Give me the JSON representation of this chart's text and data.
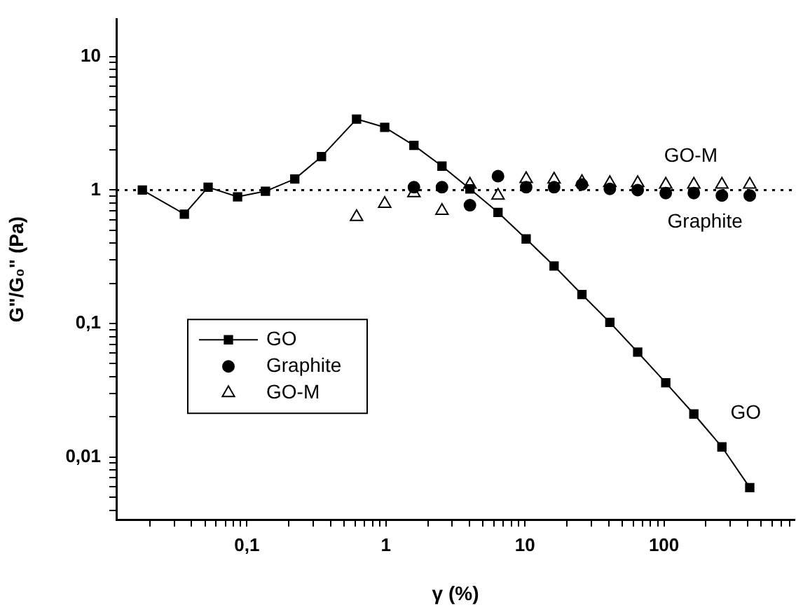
{
  "chart_data": {
    "type": "line",
    "xlabel": "γ (%)",
    "ylabel": "G\"/G₀\" (Pa)",
    "log": "xy",
    "grid": false,
    "legend": "left",
    "xlim": [
      0.0115,
      870
    ],
    "ylim": [
      0.0034,
      19
    ],
    "xticks": [
      {
        "value": 0.02,
        "label": null
      },
      {
        "value": 0.03,
        "label": null
      },
      {
        "value": 0.04,
        "label": null
      },
      {
        "value": 0.05,
        "label": null
      },
      {
        "value": 0.06,
        "label": null
      },
      {
        "value": 0.07,
        "label": null
      },
      {
        "value": 0.08,
        "label": null
      },
      {
        "value": 0.09,
        "label": null
      },
      {
        "value": 0.1,
        "label": "0,1"
      },
      {
        "value": 0.2,
        "label": null
      },
      {
        "value": 0.3,
        "label": null
      },
      {
        "value": 0.4,
        "label": null
      },
      {
        "value": 0.5,
        "label": null
      },
      {
        "value": 0.6,
        "label": null
      },
      {
        "value": 0.7,
        "label": null
      },
      {
        "value": 0.8,
        "label": null
      },
      {
        "value": 0.9,
        "label": null
      },
      {
        "value": 1,
        "label": "1"
      },
      {
        "value": 2,
        "label": null
      },
      {
        "value": 3,
        "label": null
      },
      {
        "value": 4,
        "label": null
      },
      {
        "value": 5,
        "label": null
      },
      {
        "value": 6,
        "label": null
      },
      {
        "value": 7,
        "label": null
      },
      {
        "value": 8,
        "label": null
      },
      {
        "value": 9,
        "label": null
      },
      {
        "value": 10,
        "label": "10"
      },
      {
        "value": 20,
        "label": null
      },
      {
        "value": 30,
        "label": null
      },
      {
        "value": 40,
        "label": null
      },
      {
        "value": 50,
        "label": null
      },
      {
        "value": 60,
        "label": null
      },
      {
        "value": 70,
        "label": null
      },
      {
        "value": 80,
        "label": null
      },
      {
        "value": 90,
        "label": null
      },
      {
        "value": 100,
        "label": "100"
      },
      {
        "value": 200,
        "label": null
      },
      {
        "value": 300,
        "label": null
      },
      {
        "value": 400,
        "label": null
      },
      {
        "value": 500,
        "label": null
      },
      {
        "value": 600,
        "label": null
      },
      {
        "value": 700,
        "label": null
      },
      {
        "value": 800,
        "label": null
      }
    ],
    "yticks": [
      {
        "value": 0.004,
        "label": null
      },
      {
        "value": 0.005,
        "label": null
      },
      {
        "value": 0.006,
        "label": null
      },
      {
        "value": 0.007,
        "label": null
      },
      {
        "value": 0.008,
        "label": null
      },
      {
        "value": 0.009,
        "label": null
      },
      {
        "value": 0.01,
        "label": "0,01"
      },
      {
        "value": 0.02,
        "label": null
      },
      {
        "value": 0.03,
        "label": null
      },
      {
        "value": 0.04,
        "label": null
      },
      {
        "value": 0.05,
        "label": null
      },
      {
        "value": 0.06,
        "label": null
      },
      {
        "value": 0.07,
        "label": null
      },
      {
        "value": 0.08,
        "label": null
      },
      {
        "value": 0.09,
        "label": null
      },
      {
        "value": 0.1,
        "label": "0,1"
      },
      {
        "value": 0.2,
        "label": null
      },
      {
        "value": 0.3,
        "label": null
      },
      {
        "value": 0.4,
        "label": null
      },
      {
        "value": 0.5,
        "label": null
      },
      {
        "value": 0.6,
        "label": null
      },
      {
        "value": 0.7,
        "label": null
      },
      {
        "value": 0.8,
        "label": null
      },
      {
        "value": 0.9,
        "label": null
      },
      {
        "value": 1,
        "label": "1"
      },
      {
        "value": 2,
        "label": null
      },
      {
        "value": 3,
        "label": null
      },
      {
        "value": 4,
        "label": null
      },
      {
        "value": 5,
        "label": null
      },
      {
        "value": 6,
        "label": null
      },
      {
        "value": 7,
        "label": null
      },
      {
        "value": 8,
        "label": null
      },
      {
        "value": 9,
        "label": null
      },
      {
        "value": 10,
        "label": "10"
      }
    ],
    "ref_lines": [
      {
        "axis": "y",
        "value": 1,
        "color": "#000000",
        "line_style": "dotted"
      }
    ],
    "annotations": [
      "GO-M",
      "Graphite",
      "GO"
    ],
    "series": [
      {
        "name": "GO",
        "type": "line",
        "marker": "square",
        "line_style": "solid",
        "color": "#000000",
        "x": [
          0.0177,
          0.0355,
          0.0526,
          0.0857,
          0.136,
          0.221,
          0.344,
          0.615,
          0.98,
          1.59,
          2.53,
          4.02,
          6.4,
          10.2,
          16.2,
          25.7,
          40.8,
          64.7,
          103,
          164,
          261,
          414
        ],
        "values": [
          1,
          0.66,
          1.05,
          0.89,
          0.98,
          1.21,
          1.78,
          3.4,
          2.95,
          2.16,
          1.51,
          1.02,
          0.68,
          0.43,
          0.27,
          0.165,
          0.102,
          0.061,
          0.036,
          0.021,
          0.0119,
          0.0059
        ]
      },
      {
        "name": "Graphite",
        "type": "scatter",
        "marker": "circle",
        "color": "#000000",
        "x": [
          1.59,
          2.53,
          4.02,
          6.4,
          10.2,
          16.2,
          25.7,
          40.8,
          64.7,
          103,
          164,
          261,
          414
        ],
        "values": [
          1.05,
          1.05,
          0.77,
          1.27,
          1.05,
          1.05,
          1.1,
          1.02,
          1,
          0.95,
          0.95,
          0.91,
          0.91
        ]
      },
      {
        "name": "GO-M",
        "type": "scatter",
        "marker": "triangle",
        "color": "#000000",
        "x": [
          0.615,
          0.98,
          1.59,
          2.53,
          4.02,
          6.4,
          10.2,
          16.2,
          25.7,
          40.8,
          64.7,
          103,
          164,
          261,
          414
        ],
        "values": [
          0.63,
          0.79,
          0.95,
          0.7,
          1.1,
          0.91,
          1.21,
          1.2,
          1.15,
          1.13,
          1.13,
          1.1,
          1.1,
          1.1,
          1.1
        ]
      }
    ]
  }
}
